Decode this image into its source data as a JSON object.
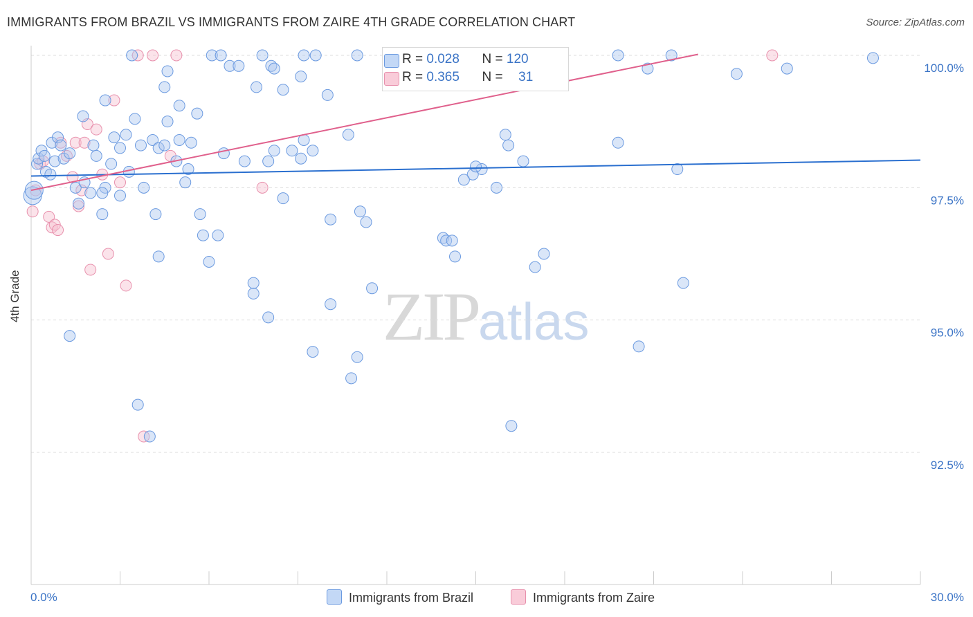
{
  "header": {
    "title": "IMMIGRANTS FROM BRAZIL VS IMMIGRANTS FROM ZAIRE 4TH GRADE CORRELATION CHART",
    "source": "Source: ZipAtlas.com"
  },
  "watermark": {
    "zip": "ZIP",
    "atlas": "atlas"
  },
  "legend": {
    "brazil": {
      "r_label": "R =",
      "r_value": "0.028",
      "n_label": "N =",
      "n_value": "120"
    },
    "zaire": {
      "r_label": "R =",
      "r_value": "0.365",
      "n_label": "N =",
      "n_value": "31"
    }
  },
  "bottom_legend": {
    "brazil": "Immigrants from Brazil",
    "zaire": "Immigrants from Zaire"
  },
  "colors": {
    "brazil_fill": "#adc8f0",
    "brazil_stroke": "#6b9ae0",
    "brazil_line": "#2a6fcf",
    "zaire_fill": "#f7c0d0",
    "zaire_stroke": "#e891ad",
    "zaire_line": "#e0608c",
    "tick_text": "#3b74c6",
    "grid": "#dddddd"
  },
  "chart_data": {
    "type": "scatter",
    "title": "IMMIGRANTS FROM BRAZIL VS IMMIGRANTS FROM ZAIRE 4TH GRADE CORRELATION CHART",
    "ylabel": "4th Grade",
    "xlabel": "",
    "xlim": [
      0,
      30
    ],
    "ylim": [
      90.0,
      100.4
    ],
    "x_ticks": [
      "0.0%",
      "30.0%"
    ],
    "y_ticks": [
      {
        "value": 92.5,
        "label": "92.5%"
      },
      {
        "value": 95.0,
        "label": "95.0%"
      },
      {
        "value": 97.5,
        "label": "97.5%"
      },
      {
        "value": 100.0,
        "label": "100.0%"
      }
    ],
    "grid": true,
    "legend_position": "top-center",
    "series": [
      {
        "name": "Immigrants from Brazil",
        "R": 0.028,
        "N": 120,
        "trend": {
          "x": [
            0,
            30
          ],
          "y": [
            97.72,
            98.02
          ]
        },
        "points": [
          [
            0.05,
            97.35
          ],
          [
            0.1,
            97.45
          ],
          [
            0.2,
            97.95
          ],
          [
            0.25,
            98.05
          ],
          [
            0.35,
            98.2
          ],
          [
            0.45,
            98.1
          ],
          [
            0.5,
            97.8
          ],
          [
            0.65,
            97.75
          ],
          [
            0.7,
            98.35
          ],
          [
            0.8,
            98.0
          ],
          [
            0.9,
            98.45
          ],
          [
            1.0,
            98.3
          ],
          [
            1.1,
            98.05
          ],
          [
            1.3,
            98.15
          ],
          [
            1.5,
            97.5
          ],
          [
            1.6,
            97.2
          ],
          [
            1.8,
            97.6
          ],
          [
            2.0,
            97.4
          ],
          [
            2.1,
            98.3
          ],
          [
            2.2,
            98.1
          ],
          [
            2.4,
            97.0
          ],
          [
            2.5,
            97.5
          ],
          [
            2.7,
            97.95
          ],
          [
            2.8,
            98.45
          ],
          [
            3.0,
            98.25
          ],
          [
            3.2,
            98.5
          ],
          [
            3.5,
            98.8
          ],
          [
            3.7,
            98.3
          ],
          [
            4.1,
            98.4
          ],
          [
            4.3,
            98.25
          ],
          [
            4.5,
            98.3
          ],
          [
            4.9,
            98.0
          ],
          [
            5.3,
            97.85
          ],
          [
            1.75,
            98.85
          ],
          [
            2.5,
            99.15
          ],
          [
            3.0,
            97.35
          ],
          [
            2.4,
            97.4
          ],
          [
            3.3,
            97.8
          ],
          [
            3.8,
            97.5
          ],
          [
            4.2,
            97.0
          ],
          [
            4.3,
            96.2
          ],
          [
            4.5,
            99.4
          ],
          [
            4.6,
            98.75
          ],
          [
            5.0,
            98.4
          ],
          [
            5.2,
            97.6
          ],
          [
            5.7,
            97.0
          ],
          [
            5.8,
            96.6
          ],
          [
            6.0,
            96.1
          ],
          [
            4.6,
            99.7
          ],
          [
            3.4,
            100.0
          ],
          [
            5.0,
            99.05
          ],
          [
            5.4,
            98.35
          ],
          [
            5.6,
            98.9
          ],
          [
            6.1,
            100.0
          ],
          [
            6.4,
            100.0
          ],
          [
            6.7,
            99.8
          ],
          [
            7.0,
            99.8
          ],
          [
            7.2,
            98.0
          ],
          [
            7.6,
            99.4
          ],
          [
            7.8,
            100.0
          ],
          [
            8.0,
            98.0
          ],
          [
            8.2,
            98.2
          ],
          [
            8.5,
            97.3
          ],
          [
            6.3,
            96.6
          ],
          [
            6.5,
            98.15
          ],
          [
            7.5,
            95.5
          ],
          [
            7.5,
            95.7
          ],
          [
            8.0,
            95.05
          ],
          [
            8.1,
            99.8
          ],
          [
            8.2,
            99.75
          ],
          [
            8.8,
            98.2
          ],
          [
            8.5,
            99.35
          ],
          [
            9.1,
            98.05
          ],
          [
            9.1,
            99.6
          ],
          [
            9.2,
            100.0
          ],
          [
            9.6,
            100.0
          ],
          [
            9.2,
            98.4
          ],
          [
            9.5,
            98.2
          ],
          [
            10.0,
            99.25
          ],
          [
            10.1,
            95.3
          ],
          [
            10.7,
            98.5
          ],
          [
            10.1,
            96.9
          ],
          [
            11.0,
            100.0
          ],
          [
            11.3,
            96.85
          ],
          [
            11.1,
            97.05
          ],
          [
            11.5,
            95.6
          ],
          [
            11.0,
            94.3
          ],
          [
            9.5,
            94.4
          ],
          [
            10.8,
            93.9
          ],
          [
            14.0,
            100.0
          ],
          [
            13.9,
            96.55
          ],
          [
            14.0,
            96.5
          ],
          [
            14.3,
            96.2
          ],
          [
            15.3,
            99.6
          ],
          [
            15.7,
            97.5
          ],
          [
            16.0,
            98.5
          ],
          [
            16.6,
            98.0
          ],
          [
            16.1,
            98.3
          ],
          [
            17.3,
            96.25
          ],
          [
            17.0,
            96.0
          ],
          [
            16.9,
            100.0
          ],
          [
            15.2,
            97.85
          ],
          [
            14.9,
            97.75
          ],
          [
            14.6,
            97.65
          ],
          [
            19.8,
            100.0
          ],
          [
            14.2,
            96.5
          ],
          [
            15.0,
            97.9
          ],
          [
            23.8,
            99.65
          ],
          [
            16.2,
            93.0
          ],
          [
            19.8,
            98.35
          ],
          [
            21.8,
            97.85
          ],
          [
            22.0,
            95.7
          ],
          [
            28.4,
            99.95
          ],
          [
            25.5,
            99.75
          ],
          [
            21.6,
            100.0
          ],
          [
            20.8,
            99.75
          ],
          [
            1.3,
            94.7
          ],
          [
            3.6,
            93.4
          ],
          [
            4.0,
            92.8
          ],
          [
            20.5,
            94.5
          ]
        ]
      },
      {
        "name": "Immigrants from Zaire",
        "R": 0.365,
        "N": 31,
        "trend": {
          "x": [
            0,
            22.5
          ],
          "y": [
            97.45,
            100.02
          ]
        },
        "points": [
          [
            0.05,
            97.05
          ],
          [
            0.15,
            97.45
          ],
          [
            0.3,
            97.95
          ],
          [
            0.4,
            98.0
          ],
          [
            0.6,
            96.95
          ],
          [
            0.7,
            96.75
          ],
          [
            0.8,
            96.8
          ],
          [
            0.9,
            96.7
          ],
          [
            1.0,
            98.35
          ],
          [
            1.2,
            98.1
          ],
          [
            1.4,
            97.7
          ],
          [
            1.5,
            98.35
          ],
          [
            1.6,
            97.15
          ],
          [
            1.7,
            97.45
          ],
          [
            1.8,
            98.35
          ],
          [
            1.9,
            98.7
          ],
          [
            2.0,
            95.95
          ],
          [
            2.2,
            98.6
          ],
          [
            2.4,
            97.75
          ],
          [
            2.6,
            96.25
          ],
          [
            2.8,
            99.15
          ],
          [
            3.0,
            97.6
          ],
          [
            3.2,
            95.65
          ],
          [
            3.6,
            100.0
          ],
          [
            3.8,
            92.8
          ],
          [
            4.1,
            100.0
          ],
          [
            4.7,
            98.1
          ],
          [
            4.9,
            100.0
          ],
          [
            7.8,
            97.5
          ],
          [
            12.3,
            100.0
          ],
          [
            25.0,
            100.0
          ]
        ]
      }
    ]
  }
}
